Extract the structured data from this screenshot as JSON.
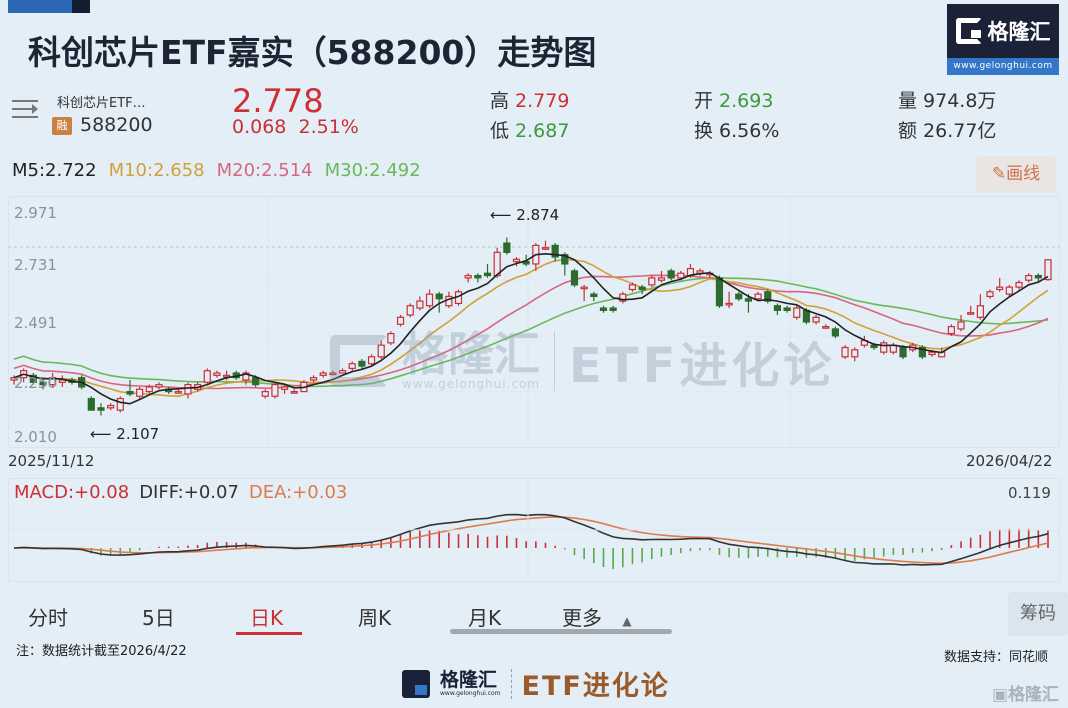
{
  "header": {
    "title": "科创芯片ETF嘉实（588200）走势图",
    "logo": {
      "name": "格隆汇",
      "url": "www.gelonghui.com"
    }
  },
  "quote": {
    "name": "科创芯片ETF…",
    "margin_badge": "融",
    "code": "588200",
    "price": "2.778",
    "change": "0.068",
    "change_pct": "2.51%",
    "high_label": "高",
    "high": "2.779",
    "low_label": "低",
    "low": "2.687",
    "open_label": "开",
    "open": "2.693",
    "turnover_label": "换",
    "turnover": "6.56%",
    "volume_label": "量",
    "volume": "974.8万",
    "amount_label": "额",
    "amount": "26.77亿"
  },
  "ma": {
    "m5": "M5:2.722",
    "m10": "M10:2.658",
    "m20": "M20:2.514",
    "m30": "M30:2.492"
  },
  "draw_button": {
    "icon": "pencil-icon",
    "label": "画线"
  },
  "colors": {
    "up": "#cc2f36",
    "down": "#2e6b2e",
    "m5": "#222222",
    "m10": "#d4a036",
    "m20": "#d9657f",
    "m30": "#6bb85a",
    "dea": "#e07a4e"
  },
  "chart": {
    "y_ticks": [
      "2.971",
      "2.731",
      "2.491",
      "2.250",
      "2.010"
    ],
    "start_date": "2025/11/12",
    "end_date": "2026/04/22",
    "max_annotation": "2.874",
    "min_annotation": "2.107",
    "watermark_brand": "格隆汇",
    "watermark_url": "www.gelonghui.com",
    "watermark_text": "ETF进化论"
  },
  "macd": {
    "macd_label": "MACD:+0.08",
    "diff_label": "DIFF:+0.07",
    "dea_label": "DEA:+0.03",
    "max_label": "0.119"
  },
  "tabs": [
    {
      "label": "分时"
    },
    {
      "label": "5日"
    },
    {
      "label": "日K",
      "active": true
    },
    {
      "label": "周K"
    },
    {
      "label": "月K"
    },
    {
      "label": "更多"
    }
  ],
  "chip_button": "筹码",
  "footer": {
    "note": "注：数据统计截至2026/4/22",
    "source": "数据支持：同花顺",
    "brand": "格隆汇",
    "brand_url": "www.gelonghui.com",
    "column": "ETF进化论",
    "corner_watermark": "格隆汇"
  },
  "chart_data": {
    "type": "candlestick",
    "title": "科创芯片ETF嘉实（588200）走势图",
    "x_range": [
      "2025/11/12",
      "2026/04/22"
    ],
    "ylim": [
      2.01,
      2.971
    ],
    "y_ticks": [
      2.971,
      2.731,
      2.491,
      2.25,
      2.01
    ],
    "annotations": [
      {
        "text": "2.874",
        "type": "max"
      },
      {
        "text": "2.107",
        "type": "min"
      }
    ],
    "last": {
      "open": 2.693,
      "high": 2.779,
      "low": 2.687,
      "close": 2.778
    },
    "moving_averages": {
      "M5": 2.722,
      "M10": 2.658,
      "M20": 2.514,
      "M30": 2.492
    },
    "candles": [
      [
        2.26,
        2.27,
        2.28,
        2.24
      ],
      [
        2.27,
        2.3,
        2.31,
        2.25
      ],
      [
        2.28,
        2.25,
        2.29,
        2.24
      ],
      [
        2.25,
        2.24,
        2.26,
        2.22
      ],
      [
        2.24,
        2.27,
        2.29,
        2.23
      ],
      [
        2.25,
        2.26,
        2.28,
        2.23
      ],
      [
        2.26,
        2.25,
        2.27,
        2.24
      ],
      [
        2.27,
        2.23,
        2.28,
        2.22
      ],
      [
        2.18,
        2.13,
        2.19,
        2.13
      ],
      [
        2.14,
        2.13,
        2.16,
        2.107
      ],
      [
        2.14,
        2.15,
        2.16,
        2.13
      ],
      [
        2.13,
        2.18,
        2.19,
        2.12
      ],
      [
        2.21,
        2.2,
        2.26,
        2.19
      ],
      [
        2.19,
        2.22,
        2.23,
        2.18
      ],
      [
        2.21,
        2.23,
        2.24,
        2.2
      ],
      [
        2.23,
        2.24,
        2.25,
        2.22
      ],
      [
        2.22,
        2.21,
        2.23,
        2.2
      ],
      [
        2.21,
        2.21,
        2.22,
        2.2
      ],
      [
        2.2,
        2.24,
        2.25,
        2.18
      ],
      [
        2.22,
        2.24,
        2.25,
        2.21
      ],
      [
        2.25,
        2.3,
        2.31,
        2.24
      ],
      [
        2.28,
        2.29,
        2.3,
        2.27
      ],
      [
        2.28,
        2.28,
        2.3,
        2.26
      ],
      [
        2.29,
        2.27,
        2.3,
        2.26
      ],
      [
        2.26,
        2.29,
        2.3,
        2.24
      ],
      [
        2.27,
        2.24,
        2.28,
        2.23
      ],
      [
        2.19,
        2.21,
        2.22,
        2.18
      ],
      [
        2.19,
        2.24,
        2.25,
        2.18
      ],
      [
        2.22,
        2.23,
        2.24,
        2.2
      ],
      [
        2.21,
        2.21,
        2.22,
        2.2
      ],
      [
        2.21,
        2.25,
        2.26,
        2.21
      ],
      [
        2.26,
        2.27,
        2.28,
        2.25
      ],
      [
        2.28,
        2.29,
        2.3,
        2.27
      ],
      [
        2.29,
        2.29,
        2.3,
        2.28
      ],
      [
        2.29,
        2.3,
        2.31,
        2.29
      ],
      [
        2.31,
        2.33,
        2.34,
        2.3
      ],
      [
        2.34,
        2.32,
        2.35,
        2.31
      ],
      [
        2.33,
        2.36,
        2.37,
        2.32
      ],
      [
        2.36,
        2.41,
        2.43,
        2.35
      ],
      [
        2.42,
        2.46,
        2.47,
        2.41
      ],
      [
        2.5,
        2.53,
        2.54,
        2.49
      ],
      [
        2.54,
        2.58,
        2.59,
        2.53
      ],
      [
        2.57,
        2.6,
        2.62,
        2.56
      ],
      [
        2.58,
        2.63,
        2.65,
        2.57
      ],
      [
        2.63,
        2.61,
        2.64,
        2.55
      ],
      [
        2.58,
        2.62,
        2.64,
        2.57
      ],
      [
        2.59,
        2.64,
        2.65,
        2.58
      ],
      [
        2.7,
        2.71,
        2.72,
        2.68
      ],
      [
        2.71,
        2.7,
        2.72,
        2.68
      ],
      [
        2.72,
        2.71,
        2.76,
        2.7
      ],
      [
        2.71,
        2.81,
        2.83,
        2.7
      ],
      [
        2.85,
        2.81,
        2.874,
        2.8
      ],
      [
        2.77,
        2.78,
        2.79,
        2.75
      ],
      [
        2.77,
        2.76,
        2.8,
        2.75
      ],
      [
        2.76,
        2.84,
        2.85,
        2.73
      ],
      [
        2.83,
        2.83,
        2.86,
        2.82
      ],
      [
        2.84,
        2.79,
        2.85,
        2.77
      ],
      [
        2.8,
        2.76,
        2.81,
        2.71
      ],
      [
        2.73,
        2.67,
        2.74,
        2.66
      ],
      [
        2.66,
        2.66,
        2.67,
        2.6
      ],
      [
        2.63,
        2.62,
        2.64,
        2.6
      ],
      [
        2.57,
        2.56,
        2.58,
        2.55
      ],
      [
        2.57,
        2.56,
        2.58,
        2.55
      ],
      [
        2.6,
        2.63,
        2.64,
        2.59
      ],
      [
        2.65,
        2.67,
        2.68,
        2.64
      ],
      [
        2.66,
        2.65,
        2.67,
        2.63
      ],
      [
        2.67,
        2.7,
        2.71,
        2.66
      ],
      [
        2.69,
        2.7,
        2.73,
        2.68
      ],
      [
        2.73,
        2.7,
        2.74,
        2.69
      ],
      [
        2.7,
        2.72,
        2.73,
        2.69
      ],
      [
        2.71,
        2.74,
        2.76,
        2.7
      ],
      [
        2.72,
        2.73,
        2.74,
        2.71
      ],
      [
        2.72,
        2.72,
        2.73,
        2.7
      ],
      [
        2.7,
        2.58,
        2.71,
        2.57
      ],
      [
        2.59,
        2.59,
        2.64,
        2.57
      ],
      [
        2.63,
        2.61,
        2.64,
        2.6
      ],
      [
        2.61,
        2.6,
        2.63,
        2.55
      ],
      [
        2.61,
        2.63,
        2.64,
        2.6
      ],
      [
        2.64,
        2.6,
        2.65,
        2.59
      ],
      [
        2.58,
        2.56,
        2.59,
        2.54
      ],
      [
        2.57,
        2.56,
        2.58,
        2.55
      ],
      [
        2.53,
        2.57,
        2.58,
        2.52
      ],
      [
        2.56,
        2.51,
        2.57,
        2.5
      ],
      [
        2.51,
        2.53,
        2.54,
        2.5
      ],
      [
        2.49,
        2.49,
        2.5,
        2.48
      ],
      [
        2.48,
        2.45,
        2.49,
        2.44
      ],
      [
        2.36,
        2.4,
        2.41,
        2.35
      ],
      [
        2.36,
        2.39,
        2.4,
        2.34
      ],
      [
        2.41,
        2.43,
        2.45,
        2.4
      ],
      [
        2.41,
        2.4,
        2.42,
        2.39
      ],
      [
        2.38,
        2.42,
        2.43,
        2.37
      ],
      [
        2.38,
        2.41,
        2.42,
        2.37
      ],
      [
        2.4,
        2.36,
        2.41,
        2.35
      ],
      [
        2.39,
        2.41,
        2.42,
        2.38
      ],
      [
        2.4,
        2.36,
        2.41,
        2.35
      ],
      [
        2.37,
        2.38,
        2.39,
        2.36
      ],
      [
        2.36,
        2.38,
        2.4,
        2.36
      ],
      [
        2.46,
        2.49,
        2.5,
        2.45
      ],
      [
        2.48,
        2.51,
        2.54,
        2.47
      ],
      [
        2.55,
        2.55,
        2.58,
        2.54
      ],
      [
        2.53,
        2.58,
        2.63,
        2.52
      ],
      [
        2.62,
        2.64,
        2.65,
        2.61
      ],
      [
        2.65,
        2.66,
        2.7,
        2.64
      ],
      [
        2.63,
        2.66,
        2.67,
        2.62
      ],
      [
        2.66,
        2.68,
        2.69,
        2.65
      ],
      [
        2.69,
        2.71,
        2.72,
        2.68
      ],
      [
        2.71,
        2.7,
        2.72,
        2.68
      ],
      [
        2.693,
        2.778,
        2.779,
        2.687
      ]
    ],
    "macd_panel": {
      "labels": {
        "MACD": "+0.08",
        "DIFF": "+0.07",
        "DEA": "+0.03"
      },
      "max": 0.119
    }
  }
}
